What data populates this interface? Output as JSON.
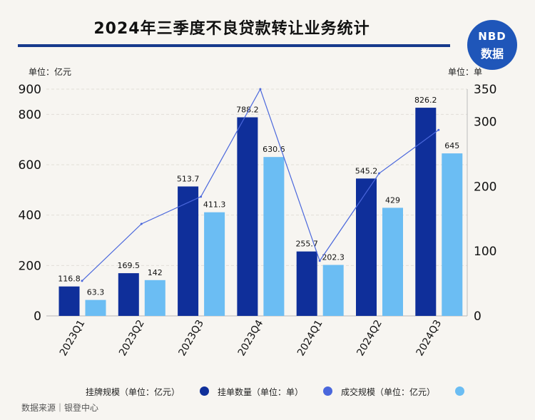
{
  "header": {
    "title": "2024年三季度不良贷款转让业务统计",
    "logo_line1": "NBD",
    "logo_line2": "数据"
  },
  "axis_units": {
    "left": "单位：亿元",
    "right": "单位：单"
  },
  "legend": {
    "listing_scale": "挂牌规模（单位：亿元）",
    "listing_count": "挂单数量（单位：单）",
    "deal_scale": "成交规模（单位：亿元）"
  },
  "footer": {
    "source": "数据来源｜银登中心"
  },
  "colors": {
    "listing_scale": "#0f2f9a",
    "listing_count": "#4a67dc",
    "deal_scale": "#6bbdf3",
    "title_rule": "#173a8c",
    "logo": "#1f56b9"
  },
  "chart_data": {
    "type": "bar",
    "title": "2024年三季度不良贷款转让业务统计",
    "categories": [
      "2023Q1",
      "2023Q2",
      "2023Q3",
      "2023Q4",
      "2024Q1",
      "2024Q2",
      "2024Q3"
    ],
    "series": [
      {
        "name": "挂牌规模（单位：亿元）",
        "type": "bar",
        "axis": "left",
        "values": [
          116.8,
          169.5,
          513.7,
          788.2,
          255.7,
          545.2,
          826.2
        ],
        "labels": [
          "116.8",
          "169.5",
          "513.7",
          "788.2",
          "255.7",
          "545.2",
          "826.2"
        ]
      },
      {
        "name": "成交规模（单位：亿元）",
        "type": "bar",
        "axis": "left",
        "values": [
          63.3,
          142,
          411.3,
          630.6,
          202.3,
          429,
          645
        ],
        "labels": [
          "63.3",
          "142",
          "411.3",
          "630.6",
          "202.3",
          "429",
          "645"
        ]
      },
      {
        "name": "挂单数量（单位：单）",
        "type": "line",
        "axis": "right",
        "values": [
          54,
          142,
          184,
          350,
          85,
          220,
          287
        ]
      }
    ],
    "y_left": {
      "label": "单位：亿元",
      "range": [
        0,
        900
      ],
      "ticks": [
        0,
        200,
        400,
        600,
        800,
        900
      ]
    },
    "y_right": {
      "label": "单位：单",
      "range": [
        0,
        350
      ],
      "ticks": [
        0,
        100,
        200,
        300,
        350
      ]
    },
    "grid": true,
    "legend_position": "bottom"
  }
}
